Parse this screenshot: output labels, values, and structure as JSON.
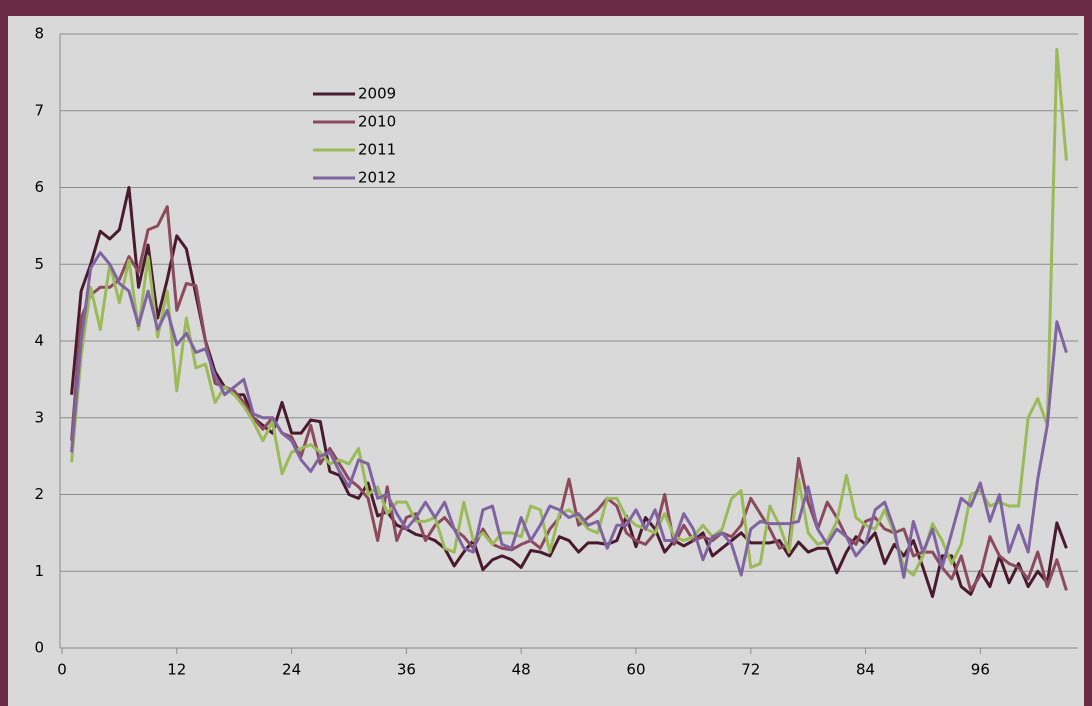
{
  "chart_data": {
    "type": "line",
    "x": [
      1,
      2,
      3,
      4,
      5,
      6,
      7,
      8,
      9,
      10,
      11,
      12,
      13,
      14,
      15,
      16,
      17,
      18,
      19,
      20,
      21,
      22,
      23,
      24,
      25,
      26,
      27,
      28,
      29,
      30,
      31,
      32,
      33,
      34,
      35,
      36,
      37,
      38,
      39,
      40,
      41,
      42,
      43,
      44,
      45,
      46,
      47,
      48,
      49,
      50,
      51,
      52,
      53,
      54,
      55,
      56,
      57,
      58,
      59,
      60,
      61,
      62,
      63,
      64,
      65,
      66,
      67,
      68,
      69,
      70,
      71,
      72,
      73,
      74,
      75,
      76,
      77,
      78,
      79,
      80,
      81,
      82,
      83,
      84,
      85,
      86,
      87,
      88,
      89,
      90,
      91,
      92,
      93,
      94,
      95,
      96,
      97,
      98,
      99,
      100,
      101,
      102,
      103,
      104,
      105
    ],
    "series": [
      {
        "name": "2009",
        "color": "#4a1a2e",
        "values": [
          3.3,
          4.65,
          5.0,
          5.43,
          5.33,
          5.45,
          6.0,
          4.7,
          5.25,
          4.3,
          4.8,
          5.37,
          5.2,
          4.6,
          4.0,
          3.6,
          3.4,
          3.3,
          3.3,
          3.0,
          2.9,
          2.8,
          3.2,
          2.8,
          2.8,
          2.97,
          2.95,
          2.3,
          2.25,
          2.0,
          1.95,
          2.15,
          1.72,
          1.78,
          1.6,
          1.55,
          1.48,
          1.45,
          1.4,
          1.3,
          1.07,
          1.25,
          1.4,
          1.02,
          1.15,
          1.2,
          1.15,
          1.05,
          1.27,
          1.25,
          1.2,
          1.45,
          1.4,
          1.25,
          1.37,
          1.37,
          1.35,
          1.4,
          1.72,
          1.32,
          1.7,
          1.55,
          1.25,
          1.4,
          1.33,
          1.4,
          1.5,
          1.2,
          1.3,
          1.4,
          1.5,
          1.37,
          1.37,
          1.37,
          1.4,
          1.2,
          1.38,
          1.25,
          1.3,
          1.3,
          0.98,
          1.25,
          1.45,
          1.35,
          1.5,
          1.1,
          1.35,
          1.2,
          1.4,
          1.05,
          0.67,
          1.2,
          1.2,
          0.8,
          0.7,
          1.0,
          0.8,
          1.2,
          0.85,
          1.1,
          0.8,
          1.0,
          0.85,
          1.63,
          1.3
        ]
      },
      {
        "name": "2010",
        "color": "#8b4a5e",
        "values": [
          2.7,
          4.3,
          4.6,
          4.7,
          4.7,
          4.8,
          5.1,
          4.9,
          5.45,
          5.5,
          5.75,
          4.4,
          4.75,
          4.72,
          4.0,
          3.45,
          3.4,
          3.35,
          3.2,
          3.0,
          2.85,
          3.0,
          2.8,
          2.75,
          2.5,
          2.9,
          2.4,
          2.6,
          2.4,
          2.2,
          2.1,
          1.95,
          1.4,
          2.1,
          1.4,
          1.7,
          1.75,
          1.4,
          1.6,
          1.7,
          1.55,
          1.45,
          1.3,
          1.55,
          1.35,
          1.3,
          1.28,
          1.35,
          1.4,
          1.3,
          1.55,
          1.7,
          2.2,
          1.6,
          1.7,
          1.8,
          1.95,
          1.85,
          1.5,
          1.4,
          1.35,
          1.5,
          2.0,
          1.35,
          1.6,
          1.4,
          1.45,
          1.4,
          1.5,
          1.45,
          1.6,
          1.95,
          1.75,
          1.55,
          1.3,
          1.35,
          2.47,
          1.9,
          1.55,
          1.9,
          1.7,
          1.45,
          1.35,
          1.65,
          1.7,
          1.55,
          1.5,
          1.55,
          1.2,
          1.25,
          1.25,
          1.05,
          0.9,
          1.2,
          0.75,
          0.95,
          1.45,
          1.2,
          1.1,
          1.05,
          0.9,
          1.25,
          0.8,
          1.15,
          0.75
        ]
      },
      {
        "name": "2011",
        "color": "#9bbb59",
        "values": [
          2.42,
          3.8,
          4.7,
          4.15,
          5.0,
          4.5,
          5.05,
          4.15,
          5.1,
          4.05,
          4.65,
          3.35,
          4.3,
          3.65,
          3.7,
          3.2,
          3.4,
          3.3,
          3.15,
          2.95,
          2.7,
          2.95,
          2.27,
          2.55,
          2.6,
          2.65,
          2.55,
          2.4,
          2.45,
          2.4,
          2.6,
          2.0,
          2.1,
          1.75,
          1.9,
          1.9,
          1.65,
          1.65,
          1.7,
          1.3,
          1.25,
          1.9,
          1.4,
          1.5,
          1.35,
          1.5,
          1.5,
          1.45,
          1.85,
          1.8,
          1.25,
          1.75,
          1.8,
          1.7,
          1.55,
          1.5,
          1.95,
          1.95,
          1.7,
          1.6,
          1.55,
          1.5,
          1.75,
          1.45,
          1.4,
          1.45,
          1.6,
          1.45,
          1.55,
          1.95,
          2.05,
          1.05,
          1.1,
          1.85,
          1.6,
          1.25,
          2.2,
          1.5,
          1.35,
          1.4,
          1.65,
          2.25,
          1.7,
          1.6,
          1.55,
          1.8,
          1.5,
          1.05,
          0.95,
          1.2,
          1.62,
          1.4,
          1.1,
          1.35,
          2.0,
          2.05,
          1.85,
          1.9,
          1.85,
          1.85,
          3.0,
          3.25,
          2.9,
          7.8,
          6.35
        ]
      },
      {
        "name": "2012",
        "color": "#8064a2",
        "values": [
          2.55,
          4.0,
          4.95,
          5.15,
          5.0,
          4.75,
          4.65,
          4.2,
          4.65,
          4.15,
          4.4,
          3.95,
          4.1,
          3.85,
          3.9,
          3.55,
          3.3,
          3.4,
          3.5,
          3.05,
          3.0,
          3.0,
          2.8,
          2.7,
          2.45,
          2.3,
          2.5,
          2.55,
          2.3,
          2.1,
          2.45,
          2.4,
          1.95,
          2.0,
          1.75,
          1.55,
          1.7,
          1.9,
          1.7,
          1.9,
          1.55,
          1.3,
          1.25,
          1.8,
          1.85,
          1.35,
          1.3,
          1.7,
          1.4,
          1.6,
          1.85,
          1.8,
          1.7,
          1.75,
          1.6,
          1.65,
          1.3,
          1.6,
          1.6,
          1.8,
          1.55,
          1.8,
          1.4,
          1.4,
          1.75,
          1.55,
          1.15,
          1.45,
          1.5,
          1.35,
          0.95,
          1.55,
          1.65,
          1.62,
          1.62,
          1.62,
          1.65,
          2.1,
          1.55,
          1.35,
          1.55,
          1.45,
          1.2,
          1.35,
          1.8,
          1.9,
          1.55,
          0.92,
          1.65,
          1.25,
          1.55,
          1.05,
          1.5,
          1.95,
          1.85,
          2.15,
          1.65,
          2.0,
          1.25,
          1.6,
          1.25,
          2.2,
          2.9,
          4.25,
          3.85
        ]
      }
    ],
    "xlim": [
      0,
      106
    ],
    "xticks": [
      0,
      12,
      24,
      36,
      48,
      60,
      72,
      84,
      96
    ],
    "ylim": [
      0,
      8
    ],
    "yticks": [
      0,
      1,
      2,
      3,
      4,
      5,
      6,
      7,
      8
    ],
    "grid": true,
    "legend": "top-left"
  }
}
